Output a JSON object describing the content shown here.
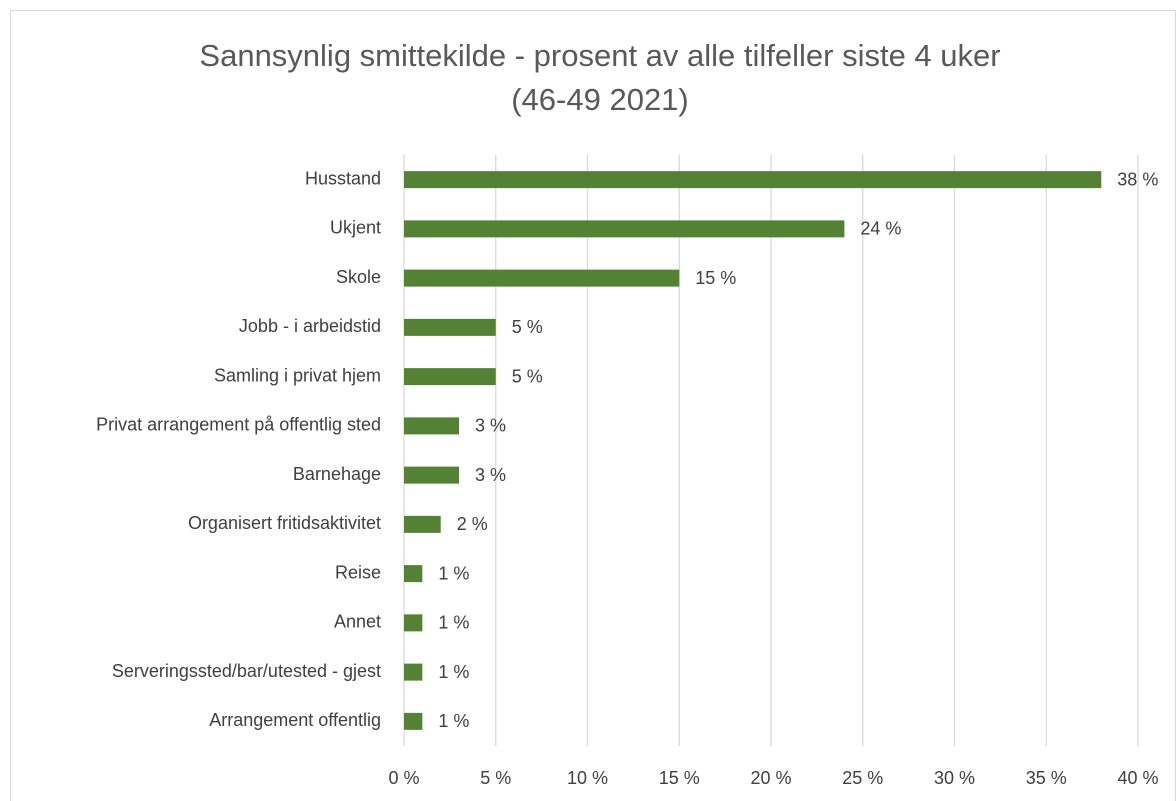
{
  "chart_data": {
    "type": "hbar",
    "title": [
      "Sannsynlig smittekilde - prosent av alle tilfeller siste 4 uker",
      "(46-49 2021)"
    ],
    "categories": [
      "Husstand",
      "Ukjent",
      "Skole",
      "Jobb - i arbeidstid",
      "Samling i privat hjem",
      "Privat arrangement på offentlig sted",
      "Barnehage",
      "Organisert fritidsaktivitet",
      "Reise",
      "Annet",
      "Serveringssted/bar/utested - gjest",
      "Arrangement offentlig"
    ],
    "values": [
      38,
      24,
      15,
      5,
      5,
      3,
      3,
      2,
      1,
      1,
      1,
      1
    ],
    "value_labels": [
      "38 %",
      "24 %",
      "15 %",
      "5 %",
      "5 %",
      "3 %",
      "3 %",
      "2 %",
      "1 %",
      "1 %",
      "1 %",
      "1 %"
    ],
    "color": "#548235",
    "xlim": [
      0,
      40
    ],
    "xticks": [
      {
        "value": 0,
        "label": "0 %"
      },
      {
        "value": 5,
        "label": "5 %"
      },
      {
        "value": 10,
        "label": "10 %"
      },
      {
        "value": 15,
        "label": "15 %"
      },
      {
        "value": 20,
        "label": "20 %"
      },
      {
        "value": 25,
        "label": "25 %"
      },
      {
        "value": 30,
        "label": "30 %"
      },
      {
        "value": 35,
        "label": "35 %"
      },
      {
        "value": 40,
        "label": "40 %"
      }
    ],
    "grid": true
  }
}
